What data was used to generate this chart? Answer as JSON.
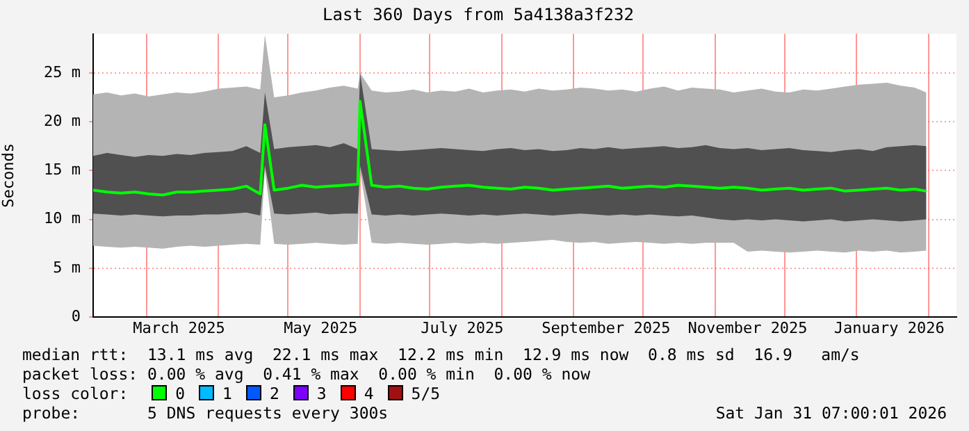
{
  "chart_data": {
    "type": "line",
    "title": "Last 360 Days from 5a4138a3f232",
    "ylabel": "Seconds",
    "x": [
      "2025-02-06",
      "2025-02-12",
      "2025-02-18",
      "2025-02-24",
      "2025-03-02",
      "2025-03-08",
      "2025-03-14",
      "2025-03-20",
      "2025-03-26",
      "2025-04-01",
      "2025-04-07",
      "2025-04-13",
      "2025-04-19",
      "2025-04-21",
      "2025-04-25",
      "2025-05-01",
      "2025-05-07",
      "2025-05-13",
      "2025-05-19",
      "2025-05-25",
      "2025-05-31",
      "2025-06-01",
      "2025-06-06",
      "2025-06-12",
      "2025-06-18",
      "2025-06-24",
      "2025-06-30",
      "2025-07-06",
      "2025-07-12",
      "2025-07-18",
      "2025-07-24",
      "2025-07-30",
      "2025-08-05",
      "2025-08-11",
      "2025-08-17",
      "2025-08-23",
      "2025-08-29",
      "2025-09-04",
      "2025-09-10",
      "2025-09-16",
      "2025-09-22",
      "2025-09-28",
      "2025-10-04",
      "2025-10-10",
      "2025-10-16",
      "2025-10-22",
      "2025-10-28",
      "2025-11-03",
      "2025-11-09",
      "2025-11-15",
      "2025-11-21",
      "2025-11-27",
      "2025-12-03",
      "2025-12-09",
      "2025-12-15",
      "2025-12-21",
      "2025-12-27",
      "2026-01-02",
      "2026-01-08",
      "2026-01-14",
      "2026-01-20",
      "2026-01-26",
      "2026-01-31"
    ],
    "series": [
      {
        "type": "area",
        "color": "#b4b4b4",
        "values": [
          null,
          null,
          null,
          null,
          null,
          null,
          null,
          null,
          null,
          null,
          null,
          null,
          null,
          null,
          null,
          null,
          null,
          null,
          null,
          null,
          null,
          null,
          null,
          null,
          null,
          null,
          null,
          null,
          null,
          null,
          null,
          null,
          null,
          null,
          null,
          null,
          null,
          null,
          null,
          null,
          null,
          null,
          null,
          null,
          null,
          null,
          null,
          null,
          null,
          null,
          null,
          null,
          null,
          null,
          null,
          null,
          null,
          null,
          null,
          null,
          null,
          null,
          null
        ],
        "upper": [
          22.8,
          23.0,
          22.7,
          22.9,
          22.6,
          22.8,
          23.0,
          22.9,
          23.1,
          23.4,
          23.5,
          23.6,
          23.3,
          28.9,
          22.5,
          22.7,
          23.0,
          23.2,
          23.5,
          23.7,
          23.4,
          25.0,
          23.2,
          23.0,
          23.1,
          23.3,
          23.0,
          23.2,
          23.1,
          23.4,
          23.0,
          23.2,
          23.3,
          23.1,
          23.4,
          23.2,
          23.3,
          23.5,
          23.4,
          23.2,
          23.3,
          23.1,
          23.4,
          23.6,
          23.2,
          23.5,
          23.4,
          23.3,
          23.0,
          23.2,
          23.4,
          23.1,
          23.0,
          23.3,
          23.2,
          23.4,
          23.6,
          23.8,
          23.9,
          24.0,
          23.7,
          23.5,
          23.0
        ],
        "lower": [
          7.3,
          7.2,
          7.1,
          7.2,
          7.1,
          7.0,
          7.2,
          7.3,
          7.2,
          7.3,
          7.4,
          7.5,
          7.4,
          15.0,
          7.5,
          7.4,
          7.5,
          7.6,
          7.5,
          7.4,
          7.5,
          15.0,
          7.6,
          7.5,
          7.6,
          7.5,
          7.4,
          7.5,
          7.6,
          7.5,
          7.6,
          7.5,
          7.6,
          7.7,
          7.8,
          7.9,
          7.7,
          7.6,
          7.7,
          7.5,
          7.6,
          7.7,
          7.6,
          7.5,
          7.6,
          7.5,
          7.6,
          7.6,
          7.6,
          6.7,
          6.8,
          6.7,
          6.6,
          6.7,
          6.8,
          6.7,
          6.6,
          6.8,
          6.7,
          6.8,
          6.6,
          6.7,
          6.8
        ]
      },
      {
        "type": "area",
        "color": "#505050",
        "values": [
          null,
          null,
          null,
          null,
          null,
          null,
          null,
          null,
          null,
          null,
          null,
          null,
          null,
          null,
          null,
          null,
          null,
          null,
          null,
          null,
          null,
          null,
          null,
          null,
          null,
          null,
          null,
          null,
          null,
          null,
          null,
          null,
          null,
          null,
          null,
          null,
          null,
          null,
          null,
          null,
          null,
          null,
          null,
          null,
          null,
          null,
          null,
          null,
          null,
          null,
          null,
          null,
          null,
          null,
          null,
          null,
          null,
          null,
          null,
          null,
          null,
          null,
          null
        ],
        "upper": [
          16.5,
          16.8,
          16.6,
          16.4,
          16.6,
          16.5,
          16.7,
          16.6,
          16.8,
          16.9,
          17.0,
          17.5,
          16.8,
          23.0,
          17.2,
          17.4,
          17.5,
          17.6,
          17.4,
          17.8,
          17.2,
          25.0,
          17.2,
          17.1,
          17.0,
          17.1,
          17.2,
          17.3,
          17.2,
          17.1,
          17.0,
          17.2,
          17.3,
          17.1,
          17.2,
          17.0,
          17.1,
          17.3,
          17.2,
          17.4,
          17.2,
          17.3,
          17.4,
          17.5,
          17.3,
          17.4,
          17.6,
          17.3,
          17.2,
          17.3,
          17.1,
          17.2,
          17.3,
          17.1,
          17.0,
          16.9,
          17.1,
          17.2,
          17.0,
          17.4,
          17.5,
          17.6,
          17.5
        ],
        "lower": [
          10.6,
          10.5,
          10.4,
          10.5,
          10.4,
          10.3,
          10.4,
          10.4,
          10.5,
          10.5,
          10.6,
          10.7,
          10.4,
          15.5,
          10.6,
          10.5,
          10.6,
          10.7,
          10.5,
          10.6,
          10.6,
          15.5,
          10.5,
          10.4,
          10.5,
          10.4,
          10.5,
          10.6,
          10.5,
          10.4,
          10.5,
          10.4,
          10.5,
          10.6,
          10.5,
          10.4,
          10.5,
          10.6,
          10.5,
          10.4,
          10.5,
          10.4,
          10.5,
          10.4,
          10.3,
          10.4,
          10.2,
          10.0,
          9.9,
          10.0,
          9.9,
          10.0,
          9.9,
          9.8,
          9.9,
          10.0,
          9.8,
          9.9,
          10.0,
          9.9,
          9.8,
          9.9,
          10.0
        ]
      },
      {
        "name": "0",
        "color": "#00ff00",
        "values": [
          13.0,
          12.8,
          12.7,
          12.8,
          12.6,
          12.5,
          12.8,
          12.8,
          12.9,
          13.0,
          13.1,
          13.4,
          12.6,
          19.7,
          13.0,
          13.2,
          13.5,
          13.3,
          13.4,
          13.5,
          13.6,
          22.1,
          13.5,
          13.3,
          13.4,
          13.2,
          13.1,
          13.3,
          13.4,
          13.5,
          13.3,
          13.2,
          13.1,
          13.3,
          13.2,
          13.0,
          13.1,
          13.2,
          13.3,
          13.4,
          13.2,
          13.3,
          13.4,
          13.3,
          13.5,
          13.4,
          13.3,
          13.2,
          13.3,
          13.2,
          13.0,
          13.1,
          13.2,
          13.0,
          13.1,
          13.2,
          12.9,
          13.0,
          13.1,
          13.2,
          13.0,
          13.1,
          12.9
        ]
      },
      {
        "name": "1",
        "color": "#00bbff",
        "values": [
          null,
          null,
          null,
          null,
          null,
          null,
          null,
          null,
          null,
          null,
          null,
          null,
          null,
          null,
          null,
          null,
          null,
          null,
          null,
          null,
          null,
          null,
          null,
          null,
          null,
          null,
          null,
          null,
          null,
          null,
          null,
          null,
          null,
          null,
          null,
          null,
          null,
          null,
          null,
          null,
          null,
          null,
          null,
          null,
          null,
          null,
          null,
          null,
          null,
          null,
          null,
          null,
          null,
          null,
          null,
          null,
          null,
          null,
          null,
          null,
          null,
          null,
          null
        ]
      },
      {
        "name": "2",
        "color": "#0059ff",
        "values": [
          null,
          null,
          null,
          null,
          null,
          null,
          null,
          null,
          null,
          null,
          null,
          null,
          null,
          null,
          null,
          null,
          null,
          null,
          null,
          null,
          null,
          null,
          null,
          null,
          null,
          null,
          null,
          null,
          null,
          null,
          null,
          null,
          null,
          null,
          null,
          null,
          null,
          null,
          null,
          null,
          null,
          null,
          null,
          null,
          null,
          null,
          null,
          null,
          null,
          null,
          null,
          null,
          null,
          null,
          null,
          null,
          null,
          null,
          null,
          null,
          null,
          null,
          null
        ]
      },
      {
        "name": "3",
        "color": "#7e00ff",
        "values": [
          null,
          null,
          null,
          null,
          null,
          null,
          null,
          null,
          null,
          null,
          null,
          null,
          null,
          null,
          null,
          null,
          null,
          null,
          null,
          null,
          null,
          null,
          null,
          null,
          null,
          null,
          null,
          null,
          null,
          null,
          null,
          null,
          null,
          null,
          null,
          null,
          null,
          null,
          null,
          null,
          null,
          null,
          null,
          null,
          null,
          null,
          null,
          null,
          null,
          null,
          null,
          null,
          null,
          null,
          null,
          null,
          null,
          null,
          null,
          null,
          null,
          null,
          null
        ]
      },
      {
        "name": "4",
        "color": "#ff0000",
        "values": [
          null,
          null,
          null,
          null,
          null,
          null,
          null,
          null,
          null,
          null,
          null,
          null,
          null,
          null,
          null,
          null,
          null,
          null,
          null,
          null,
          null,
          null,
          null,
          null,
          null,
          null,
          null,
          null,
          null,
          null,
          null,
          null,
          null,
          null,
          null,
          null,
          null,
          null,
          null,
          null,
          null,
          null,
          null,
          null,
          null,
          null,
          null,
          null,
          null,
          null,
          null,
          null,
          null,
          null,
          null,
          null,
          null,
          null,
          null,
          null,
          null,
          null,
          null
        ]
      },
      {
        "name": "5/5",
        "color": "#a01010",
        "values": [
          null,
          null,
          null,
          null,
          null,
          null,
          null,
          null,
          null,
          null,
          null,
          null,
          null,
          null,
          null,
          null,
          null,
          null,
          null,
          null,
          null,
          null,
          null,
          null,
          null,
          null,
          null,
          null,
          null,
          null,
          null,
          null,
          null,
          null,
          null,
          null,
          null,
          null,
          null,
          null,
          null,
          null,
          null,
          null,
          null,
          null,
          null,
          null,
          null,
          null,
          null,
          null,
          null,
          null,
          null,
          null,
          null,
          null,
          null,
          null,
          null,
          null,
          null
        ]
      }
    ],
    "legend": "bottom",
    "legend_title": "loss color:",
    "xlim": [
      "2025-02-06",
      "2026-02-13"
    ],
    "xticks": [
      {
        "value": "2025-03-01",
        "label": null
      },
      {
        "value": "2025-03-15",
        "label": "March 2025"
      },
      {
        "value": "2025-04-01",
        "label": null
      },
      {
        "value": "2025-05-01",
        "label": null
      },
      {
        "value": "2025-05-15",
        "label": "May 2025"
      },
      {
        "value": "2025-06-01",
        "label": null
      },
      {
        "value": "2025-07-01",
        "label": null
      },
      {
        "value": "2025-07-15",
        "label": "July 2025"
      },
      {
        "value": "2025-08-01",
        "label": null
      },
      {
        "value": "2025-09-01",
        "label": null
      },
      {
        "value": "2025-09-15",
        "label": "September 2025"
      },
      {
        "value": "2025-10-01",
        "label": null
      },
      {
        "value": "2025-11-01",
        "label": null
      },
      {
        "value": "2025-11-15",
        "label": "November 2025"
      },
      {
        "value": "2025-12-01",
        "label": null
      },
      {
        "value": "2026-01-01",
        "label": null
      },
      {
        "value": "2026-01-15",
        "label": "January 2026"
      },
      {
        "value": "2026-02-01",
        "label": null
      }
    ],
    "ylim": [
      0,
      29
    ],
    "yticks": [
      0,
      {
        "value": 5,
        "label": "5 m"
      },
      {
        "value": 10,
        "label": "10 m"
      },
      {
        "value": 15,
        "label": "15 m"
      },
      {
        "value": 20,
        "label": "20 m"
      },
      {
        "value": 25,
        "label": "25 m"
      }
    ],
    "grid": true,
    "marker": "none",
    "annotations": [
      "median rtt:  13.1 ms avg  22.1 ms max  12.2 ms min  12.9 ms now  0.8 ms sd  16.9   am/s",
      "packet loss: 0.00 % avg  0.41 % max  0.00 % min  0.00 % now",
      "probe:       5 DNS requests every 300s",
      "Sat Jan 31 07:00:01 2026"
    ]
  }
}
